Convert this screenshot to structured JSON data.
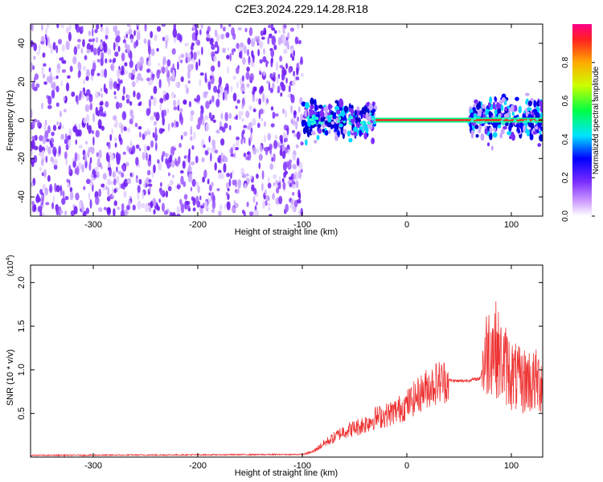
{
  "title": "C2E3.2024.229.14.28.R18",
  "colors": {
    "snr_line": "#ee3333",
    "spec_low": "#7a2cff",
    "spec_band": "#00ff88",
    "spec_core": "#ff2020",
    "axes": "#000000"
  },
  "chart_data": [
    {
      "type": "heatmap",
      "name": "spectrogram",
      "xlabel": "Height of straight line (km)",
      "ylabel": "Frequency (Hz)",
      "xlim": [
        -360,
        130
      ],
      "ylim": [
        -50,
        50
      ],
      "xticks": [
        -300,
        -200,
        -100,
        0,
        100
      ],
      "yticks": [
        -40,
        -20,
        0,
        20,
        40
      ],
      "noise_region_x": [
        -360,
        -100
      ],
      "signal_center_frequency": 0,
      "colorbar": {
        "label": "Normalized spectral amplitude",
        "range": [
          0,
          1
        ],
        "ticks": [
          "0.0",
          "0.2",
          "0.4",
          "0.6",
          "0.8"
        ],
        "colormap": "rainbow"
      }
    },
    {
      "type": "line",
      "name": "snr",
      "xlabel": "Height of straight line (km)",
      "ylabel": "SNR (10 * v/v)",
      "multiplier_label": "(x10",
      "multiplier_exp": "4",
      "multiplier_close": ")",
      "xlim": [
        -360,
        130
      ],
      "ylim": [
        0,
        22000
      ],
      "xticks": [
        -300,
        -200,
        -100,
        0,
        100
      ],
      "yticks": [
        "0.5",
        "1.0",
        "1.5",
        "2.0"
      ],
      "ytick_values": [
        5000,
        10000,
        15000,
        20000
      ],
      "x": [
        -360,
        -300,
        -200,
        -100,
        -90,
        -80,
        -70,
        -60,
        -50,
        -40,
        -30,
        -20,
        -10,
        0,
        10,
        20,
        30,
        40,
        50,
        60,
        70,
        75,
        80,
        85,
        90,
        95,
        100,
        105,
        110,
        115,
        120,
        130
      ],
      "y": [
        200,
        220,
        260,
        300,
        600,
        1500,
        2200,
        3000,
        3300,
        3800,
        4500,
        4800,
        5300,
        6000,
        7000,
        8000,
        8600,
        8800,
        8700,
        8800,
        9000,
        11500,
        13000,
        12500,
        11000,
        10500,
        9500,
        9000,
        8500,
        9000,
        8500,
        8800
      ]
    }
  ]
}
